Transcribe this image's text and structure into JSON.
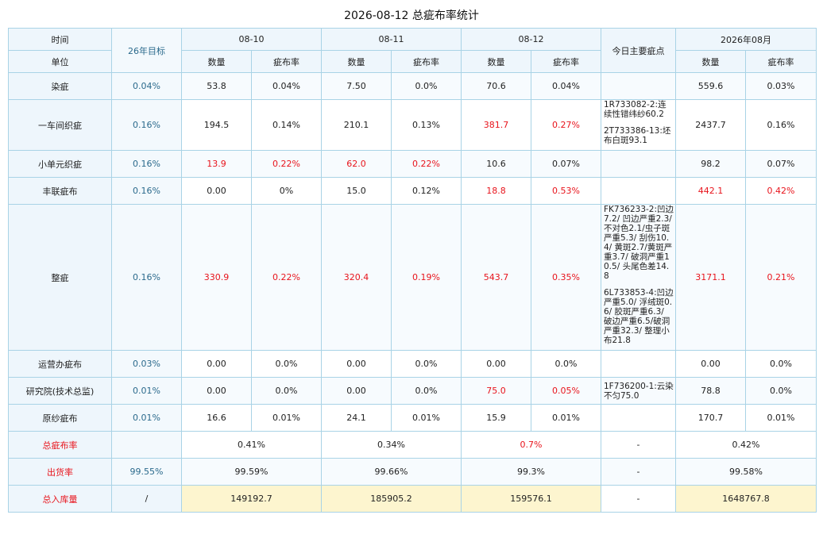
{
  "title": "2026-08-12 总疵布率统计",
  "header": {
    "time": "时间",
    "unit": "单位",
    "target": "26年目标",
    "dates": [
      "08-10",
      "08-11",
      "08-12"
    ],
    "notes": "今日主要疵点",
    "month": "2026年08月",
    "qty": "数量",
    "rate": "疵布率"
  },
  "rows": [
    {
      "name": "染疵",
      "target": "0.04%",
      "d1q": "53.8",
      "d1r": "0.04%",
      "d2q": "7.50",
      "d2r": "0.0%",
      "d3q": "70.6",
      "d3r": "0.04%",
      "notes": [],
      "mq": "559.6",
      "mr": "0.03%"
    },
    {
      "name": "一车间织疵",
      "target": "0.16%",
      "d1q": "194.5",
      "d1r": "0.14%",
      "d2q": "210.1",
      "d2r": "0.13%",
      "d3q": "381.7",
      "d3r": "0.27%",
      "notes": [
        "1R733082-2:连续性错纬纱60.2",
        "2T733386-13:坯布白斑93.1"
      ],
      "mq": "2437.7",
      "mr": "0.16%"
    },
    {
      "name": "小单元织疵",
      "target": "0.16%",
      "d1q": "13.9",
      "d1r": "0.22%",
      "d2q": "62.0",
      "d2r": "0.22%",
      "d3q": "10.6",
      "d3r": "0.07%",
      "notes": [],
      "mq": "98.2",
      "mr": "0.07%"
    },
    {
      "name": "丰联疵布",
      "target": "0.16%",
      "d1q": "0.00",
      "d1r": "0%",
      "d2q": "15.0",
      "d2r": "0.12%",
      "d3q": "18.8",
      "d3r": "0.53%",
      "notes": [],
      "mq": "442.1",
      "mr": "0.42%"
    },
    {
      "name": "整疵",
      "target": "0.16%",
      "d1q": "330.9",
      "d1r": "0.22%",
      "d2q": "320.4",
      "d2r": "0.19%",
      "d3q": "543.7",
      "d3r": "0.35%",
      "notes": [
        "FK736233-2:凹边7.2/ 凹边严重2.3/ 不对色2.1/虫子斑严重5.3/ 刮伤10.4/ 黄斑2.7/黄斑严重3.7/ 破洞严重10.5/ 头尾色差14.8",
        "6L733853-4:凹边严重5.0/ 浮绒斑0.6/ 胶斑严重6.3/ 破边严重6.5/破洞严重32.3/ 整理小布21.8"
      ],
      "mq": "3171.1",
      "mr": "0.21%"
    },
    {
      "name": "运营办疵布",
      "target": "0.03%",
      "d1q": "0.00",
      "d1r": "0.0%",
      "d2q": "0.00",
      "d2r": "0.0%",
      "d3q": "0.00",
      "d3r": "0.0%",
      "notes": [],
      "mq": "0.00",
      "mr": "0.0%"
    },
    {
      "name": "研究院(技术总监)",
      "target": "0.01%",
      "d1q": "0.00",
      "d1r": "0.0%",
      "d2q": "0.00",
      "d2r": "0.0%",
      "d3q": "75.0",
      "d3r": "0.05%",
      "notes": [
        "1F736200-1:云染不匀75.0"
      ],
      "mq": "78.8",
      "mr": "0.0%"
    },
    {
      "name": "原纱疵布",
      "target": "0.01%",
      "d1q": "16.6",
      "d1r": "0.01%",
      "d2q": "24.1",
      "d2r": "0.01%",
      "d3q": "15.9",
      "d3r": "0.01%",
      "notes": [],
      "mq": "170.7",
      "mr": "0.01%"
    }
  ],
  "summary": {
    "total_rate": {
      "label": "总疵布率",
      "target": "",
      "d1": "0.41%",
      "d2": "0.34%",
      "d3": "0.7%",
      "notes": "-",
      "month": "0.42%"
    },
    "ship_rate": {
      "label": "出货率",
      "target": "99.55%",
      "d1": "99.59%",
      "d2": "99.66%",
      "d3": "99.3%",
      "notes": "-",
      "month": "99.58%"
    },
    "stock": {
      "label": "总入库量",
      "target": "/",
      "d1": "149192.7",
      "d2": "185905.2",
      "d3": "159576.1",
      "notes": "-",
      "month": "1648767.8"
    }
  },
  "colors": {
    "highlight_red": "#e8141c",
    "target_blue": "#2b6a8c",
    "header_bg": "#eef6fc",
    "stock_bg": "#fdf5cf",
    "border": "#a9d3e6"
  }
}
